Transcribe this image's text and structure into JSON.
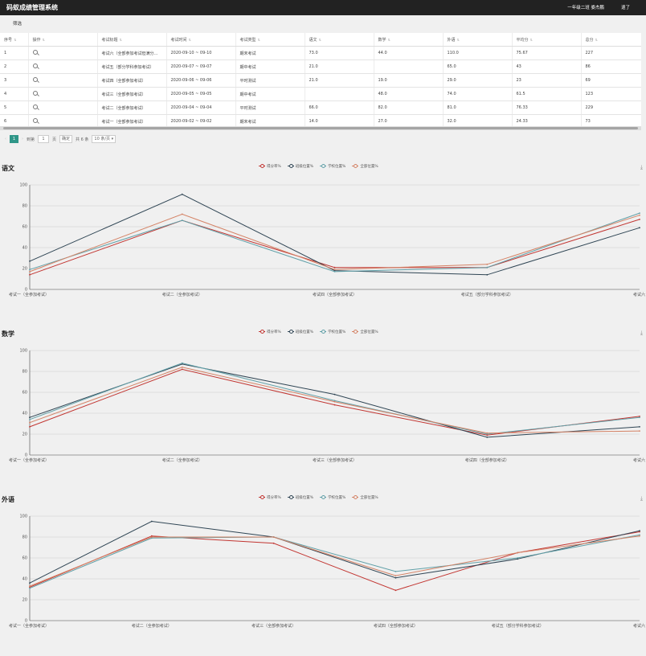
{
  "app": {
    "title": "码蚁成绩管理系统",
    "user": "一年级二班 娄杰鹏",
    "logout": "退了"
  },
  "filter_label": "筛选",
  "table": {
    "columns": [
      "序号",
      "操作",
      "考试标题",
      "考试时间",
      "考试类型",
      "语文",
      "数学",
      "外语",
      "平均分",
      "总分"
    ],
    "rows": [
      [
        "1",
        "",
        "考试六（全部参加考试但满分…",
        "2020-09-10 ~ 09-10",
        "期末考试",
        "73.0",
        "44.0",
        "110.0",
        "75.67",
        "227"
      ],
      [
        "2",
        "",
        "考试五（部分学科参加考试）",
        "2020-09-07 ~ 09-07",
        "期中考试",
        "21.0",
        "",
        "65.0",
        "43",
        "86"
      ],
      [
        "3",
        "",
        "考试四（全部参加考试）",
        "2020-09-06 ~ 09-06",
        "平时测试",
        "21.0",
        "19.0",
        "29.0",
        "23",
        "69"
      ],
      [
        "4",
        "",
        "考试三（全部参加考试）",
        "2020-09-05 ~ 09-05",
        "期中考试",
        "",
        "48.0",
        "74.0",
        "61.5",
        "123"
      ],
      [
        "5",
        "",
        "考试二（全部参加考试）",
        "2020-09-04 ~ 09-04",
        "平时测试",
        "66.0",
        "82.0",
        "81.0",
        "76.33",
        "229"
      ],
      [
        "6",
        "",
        "考试一（全部参加考试）",
        "2020-09-02 ~ 09-02",
        "期末考试",
        "14.0",
        "27.0",
        "32.0",
        "24.33",
        "73"
      ]
    ]
  },
  "pager": {
    "prev": "‹",
    "current": "1",
    "next": "›",
    "goto": "到第",
    "page_value": "1",
    "page_unit": "页",
    "confirm": "确定",
    "total": "共 6 条",
    "page_size": "10 条/页"
  },
  "colors": {
    "score": "#c23531",
    "class": "#2f4554",
    "school": "#61a0a8",
    "all": "#d48265"
  },
  "chart_data": [
    {
      "type": "line",
      "title": "语文",
      "ylim": [
        0,
        100
      ],
      "yticks": [
        0,
        20,
        40,
        60,
        80,
        100
      ],
      "grid": true,
      "legend": "top-center",
      "categories": [
        "考试一（全参加考试）",
        "考试二（全参加考试）",
        "考试四（全部参加考试）",
        "考试五（部分学科参加考试）",
        "考试六（全部参加考试但满分不同）"
      ],
      "series": [
        {
          "name": "得分率%",
          "values": [
            14,
            66,
            21,
            21,
            67
          ]
        },
        {
          "name": "班级位置%",
          "values": [
            27,
            91,
            18,
            14,
            59
          ]
        },
        {
          "name": "学校位置%",
          "values": [
            19,
            66,
            17,
            21,
            73
          ]
        },
        {
          "name": "全部位置%",
          "values": [
            17,
            72,
            19,
            24,
            71
          ]
        }
      ]
    },
    {
      "type": "line",
      "title": "数学",
      "ylim": [
        0,
        100
      ],
      "yticks": [
        0,
        20,
        40,
        60,
        80,
        100
      ],
      "grid": true,
      "legend": "top-center",
      "categories": [
        "考试一（全参加考试）",
        "考试二（全参加考试）",
        "考试三（全部参加考试）",
        "考试四（全部参加考试）",
        "考试六（全部参加考试但满分不同）"
      ],
      "series": [
        {
          "name": "得分率%",
          "values": [
            27,
            82,
            48,
            19,
            37
          ]
        },
        {
          "name": "班级位置%",
          "values": [
            36,
            87,
            58,
            17,
            27
          ]
        },
        {
          "name": "学校位置%",
          "values": [
            34,
            88,
            52,
            20,
            36
          ]
        },
        {
          "name": "全部位置%",
          "values": [
            31,
            84,
            51,
            21,
            23
          ]
        }
      ]
    },
    {
      "type": "line",
      "title": "外语",
      "ylim": [
        0,
        100
      ],
      "yticks": [
        0,
        20,
        40,
        60,
        80,
        100
      ],
      "grid": true,
      "legend": "top-center",
      "categories": [
        "考试一（全参加考试）",
        "考试二（全参加考试）",
        "考试三（全部参加考试）",
        "考试四（全部参加考试）",
        "考试五（部分学科参加考试）",
        "考试六（全部参加考试但满分不同）"
      ],
      "series": [
        {
          "name": "得分率%",
          "values": [
            32,
            81,
            74,
            29,
            65,
            85
          ]
        },
        {
          "name": "班级位置%",
          "values": [
            36,
            95,
            80,
            41,
            59,
            86
          ]
        },
        {
          "name": "学校位置%",
          "values": [
            31,
            79,
            80,
            47,
            60,
            82
          ]
        },
        {
          "name": "全部位置%",
          "values": [
            33,
            80,
            80,
            43,
            65,
            81
          ]
        }
      ]
    }
  ]
}
